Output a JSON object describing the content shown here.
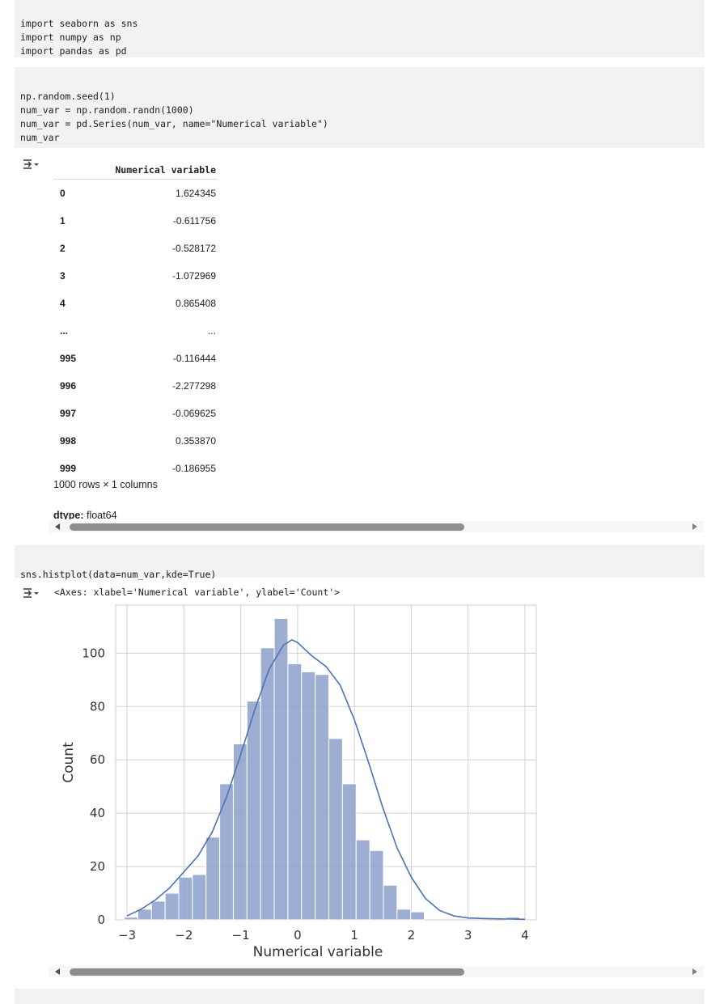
{
  "cells": [
    {
      "lines": [
        "import seaborn as sns",
        "import numpy as np",
        "import pandas as pd"
      ]
    },
    {
      "lines": [
        "np.random.seed(1)",
        "num_var = np.random.randn(1000)",
        "num_var = pd.Series(num_var, name=\"Numerical variable\")",
        "num_var"
      ]
    },
    {
      "lines": [
        "sns.histplot(data=num_var,kde=True)"
      ]
    }
  ],
  "series_output": {
    "header": "Numerical variable",
    "rows": [
      {
        "index": "0",
        "value": "1.624345"
      },
      {
        "index": "1",
        "value": "-0.611756"
      },
      {
        "index": "2",
        "value": "-0.528172"
      },
      {
        "index": "3",
        "value": "-1.072969"
      },
      {
        "index": "4",
        "value": "0.865408"
      },
      {
        "index": "...",
        "value": "..."
      },
      {
        "index": "995",
        "value": "-0.116444"
      },
      {
        "index": "996",
        "value": "-2.277298"
      },
      {
        "index": "997",
        "value": "-0.069625"
      },
      {
        "index": "998",
        "value": "0.353870"
      },
      {
        "index": "999",
        "value": "-0.186955"
      }
    ],
    "summary": "1000 rows × 1 columns",
    "dtype_label": "dtype:",
    "dtype_value": "float64"
  },
  "axes_repr": "<Axes: xlabel='Numerical variable', ylabel='Count'>",
  "icons": {
    "output_toggle": "output-toggle-icon",
    "scroll_left": "scroll-left-arrow-icon",
    "scroll_right": "scroll-right-arrow-icon"
  },
  "colors": {
    "bar_fill": "#8da0cb",
    "kde_line": "#4c72b0",
    "grid": "#d0d0d0",
    "cell_bg": "#f2f2f2"
  },
  "chart_data": {
    "type": "bar",
    "subtype": "histogram-with-kde",
    "title": "",
    "xlabel": "Numerical variable",
    "ylabel": "Count",
    "xlim": [
      -3.2,
      4.2
    ],
    "ylim": [
      0,
      118
    ],
    "xticks": [
      -3,
      -2,
      -1,
      0,
      1,
      2,
      3,
      4
    ],
    "xtick_labels": [
      "−3",
      "−2",
      "−1",
      "0",
      "1",
      "2",
      "3",
      "4"
    ],
    "yticks": [
      0,
      20,
      40,
      60,
      80,
      100
    ],
    "ytick_labels": [
      "0",
      "20",
      "40",
      "60",
      "80",
      "100"
    ],
    "grid": true,
    "bin_edges": [
      -3.05,
      -2.81,
      -2.57,
      -2.33,
      -2.09,
      -1.85,
      -1.61,
      -1.37,
      -1.13,
      -0.89,
      -0.65,
      -0.41,
      -0.17,
      0.07,
      0.31,
      0.55,
      0.79,
      1.03,
      1.27,
      1.51,
      1.75,
      1.99,
      2.23,
      2.47,
      2.71,
      2.95,
      3.19,
      3.43,
      3.67,
      3.91
    ],
    "counts": [
      1,
      4,
      7,
      10,
      16,
      17,
      31,
      51,
      66,
      82,
      102,
      113,
      96,
      93,
      92,
      68,
      51,
      30,
      26,
      13,
      4,
      3,
      0,
      0,
      0,
      0,
      0,
      0,
      1
    ],
    "kde": {
      "x": [
        -3.0,
        -2.75,
        -2.5,
        -2.25,
        -2.0,
        -1.75,
        -1.5,
        -1.25,
        -1.0,
        -0.75,
        -0.5,
        -0.25,
        -0.1,
        0.0,
        0.25,
        0.5,
        0.75,
        1.0,
        1.25,
        1.5,
        1.75,
        2.0,
        2.25,
        2.5,
        2.75,
        3.0,
        3.25,
        3.5,
        3.75,
        4.0
      ],
      "y": [
        1.5,
        4,
        7.5,
        12,
        18,
        24,
        33,
        46,
        62,
        79,
        94,
        103,
        105,
        104,
        99,
        95,
        88,
        75,
        59,
        42,
        27,
        16,
        8,
        3.5,
        1.5,
        0.7,
        0.5,
        0.4,
        0.3,
        0.2
      ]
    }
  }
}
